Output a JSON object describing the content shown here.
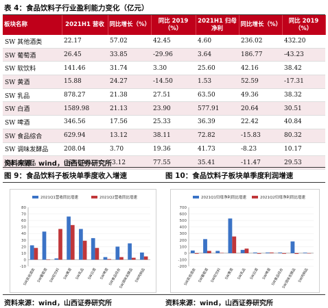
{
  "table_caption": "表 4：食品饮料子行业盈利能力变化（亿元）",
  "table": {
    "headers": [
      "板块名称",
      "2021H1 营收",
      "同比增长（%）",
      "同比 2019（%）",
      "2021H1 归母净利",
      "同比增长（%）",
      "同比 2019（%）"
    ],
    "rows": [
      [
        "SW 其他酒类",
        "22.17",
        "57.02",
        "42.45",
        "4.60",
        "236.02",
        "432.20"
      ],
      [
        "SW 葡萄酒",
        "26.45",
        "33.85",
        "-29.96",
        "3.64",
        "186.77",
        "-43.23"
      ],
      [
        "SW 软饮料",
        "141.46",
        "31.74",
        "3.30",
        "25.60",
        "42.16",
        "38.42"
      ],
      [
        "SW 黄酒",
        "15.88",
        "24.27",
        "-14.50",
        "1.53",
        "52.59",
        "-17.31"
      ],
      [
        "SW 乳品",
        "878.27",
        "21.38",
        "27.51",
        "63.50",
        "49.36",
        "38.32"
      ],
      [
        "SW 白酒",
        "1589.98",
        "21.13",
        "23.90",
        "577.91",
        "20.64",
        "30.51"
      ],
      [
        "SW 啤酒",
        "346.56",
        "17.56",
        "25.33",
        "36.39",
        "22.42",
        "40.84"
      ],
      [
        "SW 食品综合",
        "629.94",
        "13.12",
        "38.11",
        "72.82",
        "-15.83",
        "80.32"
      ],
      [
        "SW 调味发酵品",
        "208.04",
        "3.70",
        "19.36",
        "41.73",
        "-8.23",
        "10.17"
      ],
      [
        "SW 肉制品",
        "662.89",
        "-3.12",
        "77.55",
        "35.41",
        "-11.47",
        "29.53"
      ]
    ]
  },
  "table_source": "资料来源：wind，山西证券研究所",
  "fig9_caption": "图 9：食品饮料子板块单季度收入增速",
  "fig10_caption": "图 10：食品饮料子板块单季度利润增速",
  "fig9_source": "资料来源：wind，山西证券研究所",
  "fig10_source": "资料来源：wind，山西证券研究所",
  "colors": {
    "header_bg": "#c0001a",
    "band": "#f6e7ea",
    "q1": "#3b73c6",
    "q2": "#c0373a"
  },
  "chart_data": [
    {
      "type": "bar",
      "title": "",
      "series": [
        {
          "name": "2021Q1营收同比增速",
          "values": [
            22,
            43,
            2,
            66,
            47,
            33,
            4,
            20,
            25,
            11
          ]
        },
        {
          "name": "2021Q2营收同比增速",
          "values": [
            18,
            0,
            47,
            53,
            29,
            18,
            1,
            4,
            3,
            5
          ]
        }
      ],
      "categories": [
        "SW其他酒类",
        "SW葡萄酒",
        "SW软饮料",
        "SW黄酒",
        "SW乳品",
        "SW白酒",
        "SW啤酒",
        "SW食品综合",
        "SW调味发酵品",
        "SW肉制品"
      ],
      "ylim": [
        -10,
        80
      ],
      "yticks": [
        "80",
        "70",
        "60",
        "50",
        "40",
        "30",
        "20",
        "10",
        "0",
        "-10"
      ]
    },
    {
      "type": "bar",
      "title": "",
      "series": [
        {
          "name": "2021Q1归母净利同比增速",
          "values": [
            40,
            215,
            35,
            530,
            50,
            10,
            10,
            10,
            180,
            8
          ]
        },
        {
          "name": "2021Q2归母净利同比增速",
          "values": [
            -10,
            35,
            5,
            255,
            70,
            -10,
            10,
            -10,
            -12,
            -5
          ]
        }
      ],
      "categories": [
        "SW其他酒类",
        "SW葡萄酒",
        "SW软饮料",
        "SW黄酒",
        "SW乳品",
        "SW白酒",
        "SW啤酒",
        "SW食品综合",
        "SW调味发酵品",
        "SW肉制品"
      ],
      "ylim": [
        -200,
        700
      ],
      "yticks": [
        "700",
        "600",
        "500",
        "400",
        "300",
        "200",
        "100",
        "0",
        "-100",
        "-200"
      ]
    }
  ]
}
